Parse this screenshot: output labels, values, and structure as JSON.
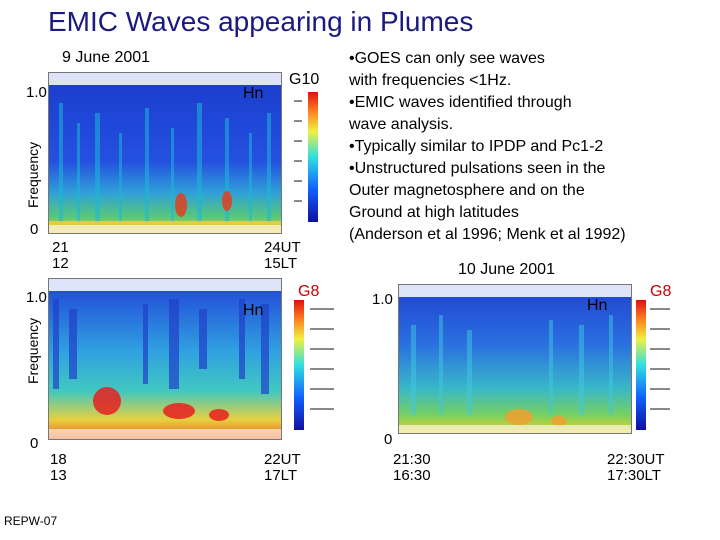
{
  "title": "EMIC Waves appearing in Plumes",
  "footer": "REPW-07",
  "bullets": [
    "•GOES can only see waves",
    "with frequencies <1Hz.",
    "•EMIC waves identified through",
    "wave analysis.",
    "•Typically similar to IPDP and Pc1-2",
    "•Unstructured pulsations seen in the",
    "Outer magnetosphere and on the",
    "Ground at high latitudes",
    "(Anderson et al 1996; Menk et al 1992)"
  ],
  "panel1": {
    "date": "9 June 2001",
    "satellite": "G10",
    "component": "Hn",
    "ylabel": "Frequency",
    "ytop": "1.0",
    "ybottom": "0",
    "xstart_ut": "21",
    "xstart_lt": "12",
    "xend_ut": "24UT",
    "xend_lt": "15LT"
  },
  "panel2": {
    "satellite": "G8",
    "component": "Hn",
    "ylabel": "Frequency",
    "ytop": "1.0",
    "ybottom": "0",
    "xstart_ut": "18",
    "xstart_lt": "13",
    "xend_ut": "22UT",
    "xend_lt": "17LT"
  },
  "panel3": {
    "date": "10 June 2001",
    "satellite": "G8",
    "component": "Hn",
    "ytop": "1.0",
    "ybottom": "0",
    "xstart_ut": "21:30",
    "xstart_lt": "16:30",
    "xend_ut": "22:30UT",
    "xend_lt": "17:30LT"
  },
  "colors": {
    "title": "#1a1a80",
    "g8": "#cc0000",
    "spectrogram_bg": "#1c3fd0"
  }
}
